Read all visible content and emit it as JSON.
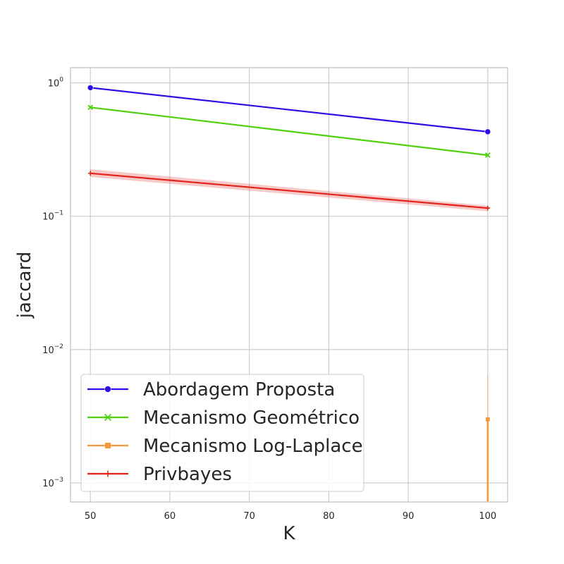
{
  "chart_data": {
    "type": "line",
    "x": [
      50,
      100
    ],
    "xlabel": "K",
    "ylabel": "jaccard",
    "xlim": [
      47.5,
      102.5
    ],
    "ylim": [
      0.00072,
      1.3
    ],
    "yscale": "log",
    "x_ticks": [
      50,
      60,
      70,
      80,
      90,
      100
    ],
    "y_ticks": [
      {
        "value": 1,
        "base": "10",
        "exp": "0"
      },
      {
        "value": 0.1,
        "base": "10",
        "exp": "−1"
      },
      {
        "value": 0.01,
        "base": "10",
        "exp": "−2"
      },
      {
        "value": 0.001,
        "base": "10",
        "exp": "−3"
      }
    ],
    "grid": true,
    "legend_position": "lower-left",
    "series": [
      {
        "name": "Abordagem Proposta",
        "values": [
          0.92,
          0.43
        ],
        "color": "#2a0fe6",
        "marker": "circle"
      },
      {
        "name": "Mecanismo Geométrico",
        "values": [
          0.655,
          0.287
        ],
        "color": "#4cd10a",
        "marker": "x"
      },
      {
        "name": "Mecanismo Log-Laplace",
        "values": [
          null,
          0.003
        ],
        "ci_upper": [
          null,
          0.0065
        ],
        "ci_lower": [
          null,
          0.0001
        ],
        "color": "#f59a3a",
        "marker": "square"
      },
      {
        "name": "Privbayes",
        "values": [
          0.21,
          0.115
        ],
        "ci_upper": [
          0.225,
          0.12
        ],
        "ci_lower": [
          0.197,
          0.109
        ],
        "color": "#e3231b",
        "marker": "plus"
      }
    ]
  }
}
